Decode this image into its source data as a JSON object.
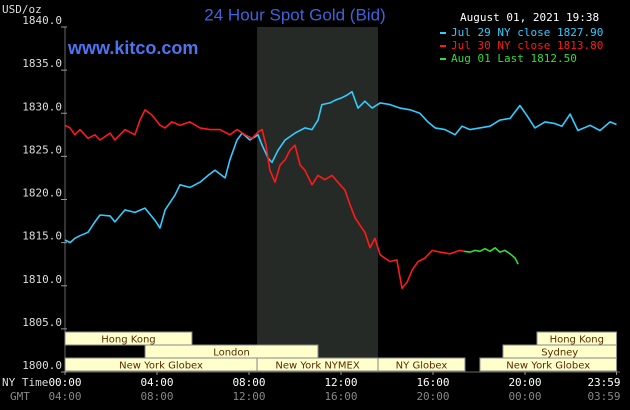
{
  "chart_data": {
    "type": "line",
    "title": "24 Hour Spot Gold (Bid)",
    "site": "www.kitco.com",
    "timestamp": "August 01, 2021 19:38",
    "y_unit": "USD/oz",
    "x_label": "NY Time",
    "x2_label": "GMT",
    "xlim": [
      0,
      24
    ],
    "ylim": [
      1800,
      1840
    ],
    "yticks": [
      {
        "value": 1800,
        "label": "1800.0"
      },
      {
        "value": 1805,
        "label": "1805.0"
      },
      {
        "value": 1810,
        "label": "1810.0"
      },
      {
        "value": 1815,
        "label": "1815.0"
      },
      {
        "value": 1820,
        "label": "1820.0"
      },
      {
        "value": 1825,
        "label": "1825.0"
      },
      {
        "value": 1830,
        "label": "1830.0"
      },
      {
        "value": 1835,
        "label": "1835.0"
      },
      {
        "value": 1840,
        "label": "1840.0"
      }
    ],
    "xticks": [
      {
        "value": 0,
        "label": "00:00"
      },
      {
        "value": 4,
        "label": "04:00"
      },
      {
        "value": 8,
        "label": "08:00"
      },
      {
        "value": 12,
        "label": "12:00"
      },
      {
        "value": 16,
        "label": "16:00"
      },
      {
        "value": 20,
        "label": "20:00"
      },
      {
        "value": 23.98,
        "label": "23:59"
      }
    ],
    "x2ticks": [
      {
        "value": 0,
        "label": "04:00"
      },
      {
        "value": 4,
        "label": "08:00"
      },
      {
        "value": 8,
        "label": "12:00"
      },
      {
        "value": 12,
        "label": "16:00"
      },
      {
        "value": 16,
        "label": "20:00"
      },
      {
        "value": 20,
        "label": "00:00"
      },
      {
        "value": 23.98,
        "label": "03:59"
      }
    ],
    "grid": false,
    "legend": "upper right",
    "shaded_range": [
      8.35,
      13.61
    ],
    "sessions": [
      {
        "name": "Hong Kong",
        "row": 0,
        "start": 0,
        "end": 5.52
      },
      {
        "name": "London",
        "row": 1,
        "start": 3.48,
        "end": 11.0
      },
      {
        "name": "New York Globex",
        "row": 2,
        "start": 0,
        "end": 8.35
      },
      {
        "name": "New York NYMEX",
        "row": 2,
        "start": 8.35,
        "end": 13.61
      },
      {
        "name": "NY Globex",
        "row": 2,
        "start": 13.61,
        "end": 17.39
      },
      {
        "name": "Hong Kong",
        "row": 0,
        "start": 20.52,
        "end": 23.98
      },
      {
        "name": "Sydney",
        "row": 1,
        "start": 19.04,
        "end": 23.98
      },
      {
        "name": "New York Globex",
        "row": 2,
        "start": 18.04,
        "end": 23.98
      }
    ],
    "series": [
      {
        "name": "Jul 29 NY close 1827.90",
        "color": "#33ccff",
        "x": [
          0,
          0.22,
          0.43,
          0.65,
          1.0,
          1.3,
          1.52,
          1.96,
          2.17,
          2.61,
          3.04,
          3.48,
          3.91,
          4.13,
          4.35,
          4.78,
          5.0,
          5.43,
          5.87,
          6.22,
          6.52,
          6.96,
          7.17,
          7.48,
          7.7,
          8.04,
          8.39,
          8.57,
          8.83,
          9.0,
          9.26,
          9.57,
          10.0,
          10.43,
          10.74,
          11.0,
          11.17,
          11.52,
          11.74,
          12.04,
          12.26,
          12.48,
          12.74,
          13.04,
          13.35,
          13.7,
          14.13,
          14.57,
          15.0,
          15.43,
          15.78,
          16.09,
          16.52,
          16.96,
          17.26,
          17.61,
          18.04,
          18.48,
          18.91,
          19.35,
          19.78,
          20.09,
          20.43,
          20.87,
          21.3,
          21.61,
          21.96,
          22.3,
          22.83,
          23.26,
          23.7,
          23.98
        ],
        "values": [
          1815.3,
          1815.0,
          1815.5,
          1815.8,
          1816.2,
          1817.4,
          1818.2,
          1818.1,
          1817.4,
          1818.8,
          1818.5,
          1819.0,
          1817.6,
          1816.7,
          1818.8,
          1820.5,
          1821.7,
          1821.4,
          1822.0,
          1822.8,
          1823.4,
          1822.5,
          1824.6,
          1826.9,
          1827.7,
          1826.9,
          1827.5,
          1826.3,
          1824.8,
          1824.3,
          1825.7,
          1826.9,
          1827.7,
          1828.3,
          1828.1,
          1829.2,
          1831.0,
          1831.2,
          1831.5,
          1831.8,
          1832.1,
          1832.5,
          1830.6,
          1831.4,
          1830.6,
          1831.2,
          1831.0,
          1830.6,
          1830.4,
          1830.0,
          1829.0,
          1828.3,
          1828.1,
          1827.5,
          1828.5,
          1828.1,
          1828.3,
          1828.5,
          1829.2,
          1829.4,
          1830.9,
          1829.7,
          1828.3,
          1829.0,
          1828.8,
          1828.5,
          1829.9,
          1828.0,
          1828.6,
          1828.0,
          1829.0,
          1828.7
        ]
      },
      {
        "name": "Jul 30 NY close 1813.80",
        "color": "#ff1a1a",
        "x": [
          0,
          0.22,
          0.43,
          0.65,
          1.0,
          1.3,
          1.52,
          1.96,
          2.17,
          2.61,
          3.04,
          3.26,
          3.48,
          3.78,
          4.13,
          4.35,
          4.65,
          5.0,
          5.43,
          5.87,
          6.3,
          6.74,
          7.17,
          7.48,
          7.83,
          8.13,
          8.39,
          8.57,
          8.74,
          8.91,
          9.13,
          9.35,
          9.57,
          9.78,
          10.0,
          10.22,
          10.43,
          10.74,
          11.0,
          11.3,
          11.61,
          11.96,
          12.17,
          12.39,
          12.61,
          12.83,
          13.04,
          13.26,
          13.48,
          13.7,
          13.91,
          14.13,
          14.43,
          14.65,
          14.87,
          15.09,
          15.35,
          15.65,
          15.96,
          16.3,
          16.74,
          17.17,
          17.35
        ],
        "values": [
          1828.6,
          1828.3,
          1827.5,
          1828.1,
          1827.1,
          1827.5,
          1826.9,
          1827.7,
          1826.9,
          1828.1,
          1827.5,
          1829.2,
          1830.4,
          1829.8,
          1828.6,
          1828.3,
          1829.0,
          1828.6,
          1829.0,
          1828.3,
          1828.1,
          1828.1,
          1827.5,
          1828.1,
          1827.5,
          1827.1,
          1827.8,
          1828.1,
          1826.3,
          1823.4,
          1822.0,
          1824.0,
          1824.6,
          1825.7,
          1826.3,
          1824.0,
          1823.4,
          1821.7,
          1822.8,
          1822.3,
          1822.8,
          1821.7,
          1821.1,
          1819.4,
          1817.9,
          1817.0,
          1816.2,
          1814.4,
          1815.5,
          1813.6,
          1813.2,
          1812.8,
          1813.0,
          1809.7,
          1810.4,
          1811.8,
          1812.8,
          1813.2,
          1814.1,
          1813.9,
          1813.7,
          1814.1,
          1814.0
        ]
      },
      {
        "name": "Aug 01 Last 1812.50",
        "color": "#33dd33",
        "x": [
          17.35,
          17.61,
          17.83,
          18.04,
          18.26,
          18.48,
          18.7,
          18.91,
          19.13,
          19.35,
          19.57,
          19.7
        ],
        "values": [
          1814.0,
          1813.9,
          1814.1,
          1814.0,
          1814.3,
          1814.0,
          1814.4,
          1813.9,
          1814.1,
          1813.7,
          1813.2,
          1812.5
        ]
      }
    ]
  }
}
